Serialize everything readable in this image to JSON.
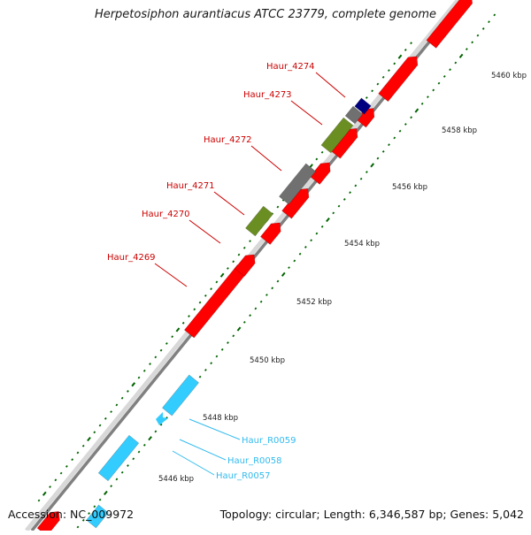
{
  "title": "Herpetosiphon aurantiacus ATCC 23779, complete genome",
  "footer": {
    "accession": "Accession: NC_009972",
    "summary": "Topology: circular; Length: 6,346,587 bp; Genes: 5,042"
  },
  "scale_labels": [
    "5446 kbp",
    "5448 kbp",
    "5450 kbp",
    "5452 kbp",
    "5454 kbp",
    "5456 kbp",
    "5458 kbp",
    "5460 kbp"
  ],
  "gene_labels": [
    {
      "id": "Haur_4274",
      "kind": "cds"
    },
    {
      "id": "Haur_4273",
      "kind": "cds"
    },
    {
      "id": "Haur_4272",
      "kind": "cds"
    },
    {
      "id": "Haur_4271",
      "kind": "cds"
    },
    {
      "id": "Haur_4270",
      "kind": "cds"
    },
    {
      "id": "Haur_4269",
      "kind": "cds"
    },
    {
      "id": "Haur_R0059",
      "kind": "rna"
    },
    {
      "id": "Haur_R0058",
      "kind": "rna"
    },
    {
      "id": "Haur_R0057",
      "kind": "rna"
    }
  ],
  "colors": {
    "cds": "#ff0000",
    "rna": "#33ccff",
    "olive": "#6b8e23",
    "gray_feature": "#707070",
    "navy": "#000080",
    "backbone": "#808080",
    "tick": "#006400",
    "cds_label": "#cc0000",
    "rna_label": "#33bbee"
  }
}
